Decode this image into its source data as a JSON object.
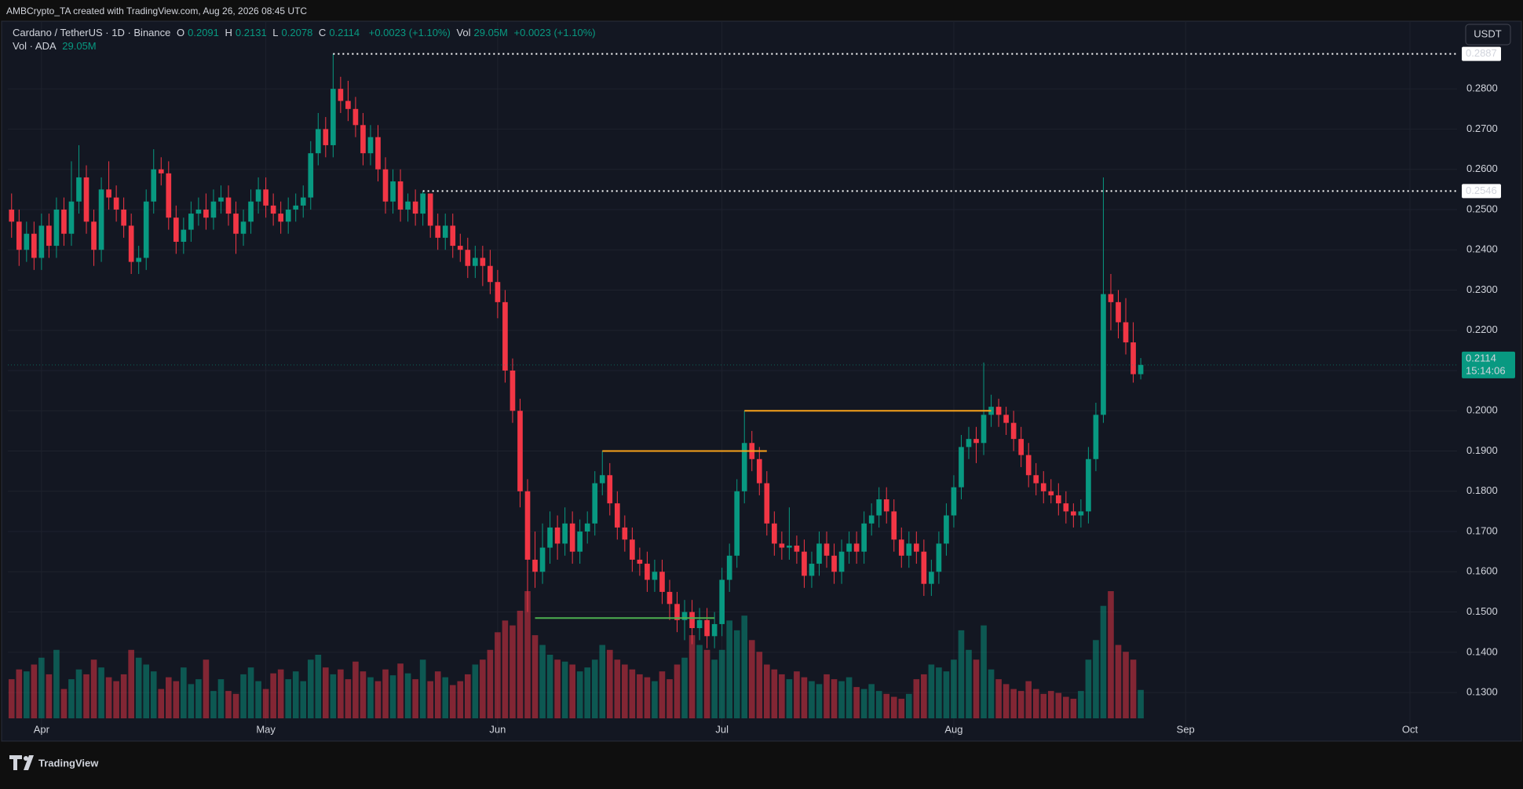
{
  "header": {
    "credit": "AMBCrypto_TA created with TradingView.com, Aug 26, 2026 08:45 UTC",
    "symbol": "Cardano / TetherUS · 1D · Binance",
    "ohlc_keys": [
      "O",
      "H",
      "L",
      "C"
    ],
    "change": "+0.0023 (+1.10%)",
    "vol_key": "Vol",
    "vol_value": "29.05M",
    "vol_change": "+0.0023 (+1.10%)",
    "pane_title": "Vol · ADA",
    "pane_value": "29.05M"
  },
  "toolbar": {
    "currency": "USDT"
  },
  "footer": {
    "logo": "TradingView"
  },
  "chart_data": {
    "type": "candlestick",
    "open": [
      0.25,
      0.247,
      0.24,
      0.244,
      0.238,
      0.246,
      0.241,
      0.25,
      0.244,
      0.252,
      0.258,
      0.247,
      0.24,
      0.255,
      0.253,
      0.25,
      0.246,
      0.237,
      0.238,
      0.252,
      0.26,
      0.259,
      0.248,
      0.242,
      0.245,
      0.249,
      0.25,
      0.248,
      0.252,
      0.253,
      0.249,
      0.244,
      0.247,
      0.252,
      0.255,
      0.251,
      0.249,
      0.247,
      0.25,
      0.251,
      0.253,
      0.264,
      0.27,
      0.266,
      0.28,
      0.277,
      0.275,
      0.271,
      0.264,
      0.268,
      0.26,
      0.252,
      0.257,
      0.25,
      0.252,
      0.249,
      0.254,
      0.246,
      0.243,
      0.246,
      0.241,
      0.24,
      0.236,
      0.238,
      0.236,
      0.232,
      0.227,
      0.21,
      0.2,
      0.18,
      0.163,
      0.16,
      0.166,
      0.171,
      0.167,
      0.172,
      0.165,
      0.17,
      0.172,
      0.182,
      0.184,
      0.177,
      0.171,
      0.168,
      0.163,
      0.162,
      0.158,
      0.16,
      0.155,
      0.152,
      0.148,
      0.15,
      0.146,
      0.148,
      0.144,
      0.147,
      0.158,
      0.164,
      0.18,
      0.192,
      0.188,
      0.182,
      0.172,
      0.167,
      0.166,
      0.1665,
      0.165,
      0.159,
      0.162,
      0.167,
      0.164,
      0.16,
      0.165,
      0.167,
      0.165,
      0.172,
      0.174,
      0.178,
      0.175,
      0.168,
      0.164,
      0.167,
      0.165,
      0.157,
      0.16,
      0.167,
      0.174,
      0.181,
      0.191,
      0.193,
      0.192,
      0.199,
      0.201,
      0.199,
      0.197,
      0.193,
      0.189,
      0.184,
      0.182,
      0.18,
      0.179,
      0.177,
      0.175,
      0.174,
      0.175,
      0.188,
      0.199,
      0.229,
      0.227,
      0.222,
      0.217,
      0.2091
    ],
    "high": [
      0.254,
      0.25,
      0.247,
      0.247,
      0.249,
      0.249,
      0.253,
      0.253,
      0.262,
      0.266,
      0.261,
      0.25,
      0.258,
      0.262,
      0.256,
      0.253,
      0.249,
      0.241,
      0.255,
      0.265,
      0.263,
      0.262,
      0.251,
      0.248,
      0.252,
      0.253,
      0.254,
      0.255,
      0.256,
      0.256,
      0.252,
      0.25,
      0.255,
      0.258,
      0.258,
      0.254,
      0.252,
      0.253,
      0.254,
      0.256,
      0.267,
      0.274,
      0.273,
      0.2887,
      0.283,
      0.282,
      0.278,
      0.274,
      0.271,
      0.271,
      0.263,
      0.26,
      0.26,
      0.254,
      0.255,
      0.2546,
      0.253,
      0.249,
      0.249,
      0.249,
      0.244,
      0.243,
      0.241,
      0.241,
      0.24,
      0.235,
      0.23,
      0.213,
      0.203,
      0.183,
      0.17,
      0.172,
      0.175,
      0.174,
      0.176,
      0.175,
      0.173,
      0.175,
      0.185,
      0.19,
      0.187,
      0.18,
      0.174,
      0.171,
      0.166,
      0.165,
      0.163,
      0.163,
      0.158,
      0.155,
      0.153,
      0.153,
      0.151,
      0.151,
      0.15,
      0.161,
      0.167,
      0.183,
      0.2,
      0.195,
      0.191,
      0.185,
      0.175,
      0.17,
      0.176,
      0.169,
      0.168,
      0.165,
      0.17,
      0.17,
      0.167,
      0.168,
      0.17,
      0.17,
      0.175,
      0.177,
      0.181,
      0.181,
      0.178,
      0.171,
      0.17,
      0.17,
      0.168,
      0.163,
      0.17,
      0.177,
      0.184,
      0.194,
      0.196,
      0.196,
      0.212,
      0.204,
      0.203,
      0.201,
      0.2,
      0.196,
      0.192,
      0.187,
      0.185,
      0.183,
      0.182,
      0.18,
      0.177,
      0.178,
      0.191,
      0.202,
      0.258,
      0.234,
      0.23,
      0.228,
      0.222,
      0.2131
    ],
    "low": [
      0.243,
      0.236,
      0.237,
      0.235,
      0.235,
      0.238,
      0.238,
      0.241,
      0.241,
      0.249,
      0.244,
      0.236,
      0.237,
      0.25,
      0.247,
      0.243,
      0.234,
      0.234,
      0.235,
      0.249,
      0.256,
      0.245,
      0.239,
      0.239,
      0.242,
      0.246,
      0.245,
      0.245,
      0.249,
      0.246,
      0.239,
      0.241,
      0.244,
      0.249,
      0.248,
      0.246,
      0.244,
      0.244,
      0.247,
      0.248,
      0.25,
      0.261,
      0.263,
      0.263,
      0.274,
      0.272,
      0.268,
      0.261,
      0.261,
      0.257,
      0.249,
      0.249,
      0.247,
      0.247,
      0.246,
      0.246,
      0.243,
      0.24,
      0.24,
      0.238,
      0.237,
      0.233,
      0.233,
      0.231,
      0.229,
      0.223,
      0.207,
      0.197,
      0.176,
      0.15,
      0.156,
      0.157,
      0.162,
      0.163,
      0.164,
      0.162,
      0.162,
      0.167,
      0.169,
      0.179,
      0.174,
      0.168,
      0.165,
      0.16,
      0.159,
      0.155,
      0.155,
      0.152,
      0.148,
      0.145,
      0.143,
      0.142,
      0.143,
      0.141,
      0.141,
      0.144,
      0.155,
      0.161,
      0.177,
      0.185,
      0.179,
      0.169,
      0.164,
      0.163,
      0.163,
      0.162,
      0.156,
      0.156,
      0.159,
      0.161,
      0.157,
      0.157,
      0.162,
      0.162,
      0.162,
      0.169,
      0.171,
      0.172,
      0.165,
      0.161,
      0.161,
      0.162,
      0.154,
      0.154,
      0.157,
      0.164,
      0.171,
      0.178,
      0.188,
      0.187,
      0.189,
      0.196,
      0.196,
      0.194,
      0.19,
      0.186,
      0.181,
      0.179,
      0.177,
      0.177,
      0.174,
      0.172,
      0.171,
      0.171,
      0.172,
      0.185,
      0.197,
      0.22,
      0.218,
      0.214,
      0.207,
      0.2078
    ],
    "close": [
      0.247,
      0.24,
      0.244,
      0.238,
      0.246,
      0.241,
      0.25,
      0.244,
      0.252,
      0.258,
      0.247,
      0.24,
      0.255,
      0.253,
      0.25,
      0.246,
      0.237,
      0.238,
      0.252,
      0.26,
      0.259,
      0.248,
      0.242,
      0.245,
      0.249,
      0.25,
      0.248,
      0.252,
      0.253,
      0.249,
      0.244,
      0.247,
      0.252,
      0.255,
      0.251,
      0.249,
      0.247,
      0.25,
      0.251,
      0.253,
      0.264,
      0.27,
      0.266,
      0.28,
      0.277,
      0.275,
      0.271,
      0.264,
      0.268,
      0.26,
      0.252,
      0.257,
      0.25,
      0.252,
      0.249,
      0.254,
      0.246,
      0.243,
      0.246,
      0.241,
      0.24,
      0.236,
      0.238,
      0.236,
      0.232,
      0.227,
      0.21,
      0.2,
      0.18,
      0.163,
      0.16,
      0.166,
      0.171,
      0.167,
      0.172,
      0.165,
      0.17,
      0.172,
      0.182,
      0.184,
      0.177,
      0.171,
      0.168,
      0.163,
      0.162,
      0.158,
      0.16,
      0.155,
      0.152,
      0.148,
      0.15,
      0.146,
      0.148,
      0.144,
      0.147,
      0.158,
      0.164,
      0.18,
      0.192,
      0.188,
      0.182,
      0.172,
      0.167,
      0.166,
      0.1665,
      0.165,
      0.159,
      0.162,
      0.167,
      0.164,
      0.16,
      0.165,
      0.167,
      0.165,
      0.172,
      0.174,
      0.178,
      0.175,
      0.168,
      0.164,
      0.167,
      0.165,
      0.157,
      0.16,
      0.167,
      0.174,
      0.181,
      0.191,
      0.193,
      0.192,
      0.199,
      0.201,
      0.199,
      0.197,
      0.193,
      0.189,
      0.184,
      0.182,
      0.18,
      0.179,
      0.177,
      0.175,
      0.174,
      0.175,
      0.188,
      0.199,
      0.229,
      0.227,
      0.222,
      0.217,
      0.2091,
      0.2114
    ],
    "volume": [
      40,
      50,
      48,
      55,
      62,
      45,
      70,
      30,
      40,
      50,
      45,
      60,
      52,
      42,
      38,
      45,
      70,
      62,
      55,
      48,
      30,
      42,
      38,
      52,
      35,
      40,
      60,
      28,
      40,
      28,
      25,
      45,
      52,
      38,
      30,
      46,
      50,
      40,
      48,
      38,
      60,
      65,
      52,
      45,
      50,
      40,
      58,
      48,
      42,
      38,
      50,
      44,
      56,
      46,
      40,
      60,
      38,
      48,
      42,
      34,
      38,
      45,
      55,
      60,
      70,
      88,
      100,
      95,
      110,
      130,
      85,
      75,
      65,
      60,
      58,
      55,
      48,
      52,
      60,
      75,
      70,
      60,
      55,
      50,
      45,
      42,
      38,
      48,
      40,
      55,
      62,
      85,
      75,
      70,
      60,
      70,
      100,
      90,
      105,
      80,
      68,
      55,
      50,
      45,
      40,
      48,
      42,
      38,
      35,
      45,
      40,
      38,
      42,
      32,
      30,
      35,
      28,
      25,
      22,
      20,
      25,
      40,
      45,
      55,
      52,
      48,
      60,
      90,
      70,
      60,
      95,
      50,
      40,
      35,
      30,
      28,
      38,
      30,
      25,
      28,
      26,
      22,
      20,
      28,
      60,
      80,
      115,
      130,
      75,
      68,
      60,
      29.05
    ],
    "up_color": "#089981",
    "down_color": "#f23645",
    "ylim": [
      0.1187,
      0.2933
    ],
    "yticks": [
      {
        "value": 0.13,
        "label": "0.1300"
      },
      {
        "value": 0.14,
        "label": "0.1400"
      },
      {
        "value": 0.15,
        "label": "0.1500"
      },
      {
        "value": 0.16,
        "label": "0.1600"
      },
      {
        "value": 0.17,
        "label": "0.1700"
      },
      {
        "value": 0.18,
        "label": "0.1800"
      },
      {
        "value": 0.19,
        "label": "0.1900"
      },
      {
        "value": 0.2,
        "label": "0.2000"
      },
      {
        "value": 0.21,
        "label": "0.2100"
      },
      {
        "value": 0.22,
        "label": "0.2200"
      },
      {
        "value": 0.23,
        "label": "0.2300"
      },
      {
        "value": 0.24,
        "label": "0.2400"
      },
      {
        "value": 0.25,
        "label": "0.2500"
      },
      {
        "value": 0.26,
        "label": "0.2600"
      },
      {
        "value": 0.27,
        "label": "0.2700"
      },
      {
        "value": 0.28,
        "label": "0.2800"
      }
    ],
    "xlim": [
      -0.5,
      193.3
    ],
    "xticks": [
      {
        "value": 4,
        "label": "Apr"
      },
      {
        "value": 34,
        "label": "May"
      },
      {
        "value": 65,
        "label": "Jun"
      },
      {
        "value": 95,
        "label": "Jul"
      },
      {
        "value": 126,
        "label": "Aug"
      },
      {
        "value": 157,
        "label": "Sep"
      },
      {
        "value": 187,
        "label": "Oct"
      }
    ],
    "grid": true,
    "lines": [
      {
        "value": 0.2887,
        "from": 43,
        "extend": "right",
        "style": "dotted",
        "color": "#ffffff"
      },
      {
        "value": 0.2546,
        "from": 55,
        "extend": "right",
        "style": "dotted",
        "color": "#ffffff"
      },
      {
        "value": 0.19,
        "from": 79,
        "to": 101,
        "style": "solid",
        "color": "#f7a21b"
      },
      {
        "value": 0.2,
        "from": 98,
        "to": 131,
        "style": "solid",
        "color": "#f7a21b"
      },
      {
        "value": 0.1485,
        "from": 70,
        "to": 94,
        "style": "solid",
        "color": "#4caf50"
      }
    ],
    "countdown": "15:14:06"
  }
}
